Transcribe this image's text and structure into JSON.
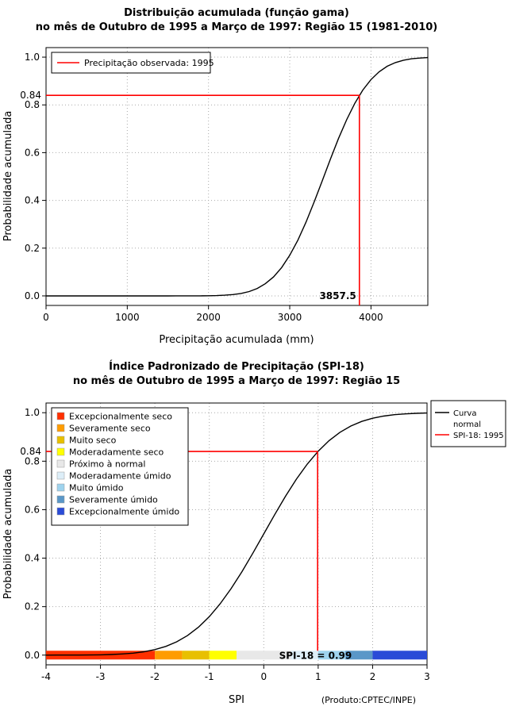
{
  "page": {
    "credit": "(Produto:CPTEC/INPE)"
  },
  "chart_data": [
    {
      "type": "line",
      "title": "Distribuição acumulada (função gama)",
      "subtitle": "no mês de Outubro de 1995 a Março de 1997: Região 15 (1981-2010)",
      "xlabel": "Precipitação acumulada (mm)",
      "ylabel": "Probabilidade acumulada",
      "xlim": [
        0,
        4700
      ],
      "ylim": [
        0,
        1
      ],
      "xticks": [
        0,
        1000,
        2000,
        3000,
        4000
      ],
      "yticks": [
        0,
        0.2,
        0.4,
        0.6,
        0.8,
        1
      ],
      "extra_ytick": {
        "value": 0.84,
        "label": "0.84"
      },
      "grid": true,
      "series": [
        {
          "name": "gamma-cdf",
          "color": "#000000",
          "x": [
            0,
            100,
            200,
            300,
            400,
            500,
            600,
            700,
            800,
            900,
            1000,
            1100,
            1200,
            1300,
            1400,
            1500,
            1600,
            1700,
            1800,
            1900,
            2000,
            2100,
            2200,
            2300,
            2400,
            2500,
            2600,
            2700,
            2800,
            2900,
            3000,
            3100,
            3200,
            3300,
            3400,
            3500,
            3600,
            3700,
            3800,
            3900,
            4000,
            4100,
            4200,
            4300,
            4400,
            4500,
            4600,
            4700
          ],
          "y": [
            0,
            0,
            0,
            0,
            0,
            0,
            0,
            0,
            0,
            0,
            0,
            0,
            0,
            0,
            0,
            0,
            0.0001,
            0.0001,
            0.0002,
            0.0003,
            0.0006,
            0.0013,
            0.0028,
            0.0055,
            0.0102,
            0.0183,
            0.0312,
            0.0509,
            0.0794,
            0.1186,
            0.1699,
            0.2335,
            0.3085,
            0.3925,
            0.4819,
            0.5721,
            0.6588,
            0.7377,
            0.8062,
            0.8622,
            0.9062,
            0.9388,
            0.9619,
            0.9772,
            0.987,
            0.993,
            0.9963,
            0.9981
          ]
        }
      ],
      "reference": {
        "x": 3857.5,
        "y": 0.84,
        "color": "#ff0000",
        "annotation": "3857.5"
      },
      "legend_items": [
        {
          "label": "Precipitação observada: 1995",
          "color": "#ff0000"
        }
      ],
      "legend_position": "top-left"
    },
    {
      "type": "line",
      "title": "Índice Padronizado de Precipitação (SPI-18)",
      "subtitle": "no mês de Outubro de 1995 a Março de 1997: Região 15",
      "xlabel": "SPI",
      "ylabel": "Probabilidade acumulada",
      "xlim": [
        -4,
        3
      ],
      "ylim": [
        0,
        1
      ],
      "xticks": [
        -4,
        -3,
        -2,
        -1,
        0,
        1,
        2,
        3
      ],
      "yticks": [
        0,
        0.2,
        0.4,
        0.6,
        0.8,
        1
      ],
      "extra_ytick": {
        "value": 0.84,
        "label": "0.84"
      },
      "grid": true,
      "series": [
        {
          "name": "Curva normal",
          "color": "#000000",
          "x": [
            -4,
            -3.8,
            -3.6,
            -3.4,
            -3.2,
            -3,
            -2.8,
            -2.6,
            -2.4,
            -2.2,
            -2,
            -1.8,
            -1.6,
            -1.4,
            -1.2,
            -1,
            -0.8,
            -0.6,
            -0.4,
            -0.2,
            0,
            0.2,
            0.4,
            0.6,
            0.8,
            1,
            1.2,
            1.4,
            1.6,
            1.8,
            2,
            2.2,
            2.4,
            2.6,
            2.8,
            3
          ],
          "y": [
            0,
            0.0001,
            0.0002,
            0.0003,
            0.0007,
            0.0013,
            0.0026,
            0.0047,
            0.0082,
            0.0139,
            0.0228,
            0.0359,
            0.0548,
            0.0808,
            0.1151,
            0.1587,
            0.2119,
            0.2743,
            0.3446,
            0.4207,
            0.5,
            0.5793,
            0.6554,
            0.7257,
            0.7881,
            0.8413,
            0.8849,
            0.9192,
            0.9452,
            0.9641,
            0.9772,
            0.9861,
            0.9918,
            0.9953,
            0.9974,
            0.9987
          ]
        }
      ],
      "reference": {
        "x": 0.99,
        "y": 0.84,
        "color": "#ff0000"
      },
      "bar_annotation": {
        "text": "SPI-18 = 0.99",
        "color": "#000080"
      },
      "category_bar": [
        {
          "from": -4,
          "to": -2,
          "color": "#ff3000"
        },
        {
          "from": -2,
          "to": -1.5,
          "color": "#ff9c00"
        },
        {
          "from": -1.5,
          "to": -1,
          "color": "#e8c000"
        },
        {
          "from": -1,
          "to": -0.5,
          "color": "#ffff00"
        },
        {
          "from": -0.5,
          "to": 0.5,
          "color": "#e8e8e8"
        },
        {
          "from": 0.5,
          "to": 1,
          "color": "#ddeef8"
        },
        {
          "from": 1,
          "to": 1.5,
          "color": "#9ed3ee"
        },
        {
          "from": 1.5,
          "to": 2,
          "color": "#5a97c8"
        },
        {
          "from": 2,
          "to": 3,
          "color": "#2a4bd7"
        }
      ],
      "category_legend": [
        {
          "label": "Excepcionalmente seco",
          "color": "#ff3000"
        },
        {
          "label": "Severamente seco",
          "color": "#ff9c00"
        },
        {
          "label": "Muito seco",
          "color": "#e8c000"
        },
        {
          "label": "Moderadamente seco",
          "color": "#ffff00"
        },
        {
          "label": "Próximo à normal",
          "color": "#e8e8e8"
        },
        {
          "label": "Moderadamente úmido",
          "color": "#ddeef8"
        },
        {
          "label": "Muito úmido",
          "color": "#9ed3ee"
        },
        {
          "label": "Severamente úmido",
          "color": "#5a97c8"
        },
        {
          "label": "Excepcionalmente úmido",
          "color": "#2a4bd7"
        }
      ],
      "line_legend": [
        {
          "lines": [
            "Curva",
            "normal"
          ],
          "color": "#000000"
        },
        {
          "lines": [
            "SPI-18: 1995"
          ],
          "color": "#ff0000"
        }
      ]
    }
  ]
}
